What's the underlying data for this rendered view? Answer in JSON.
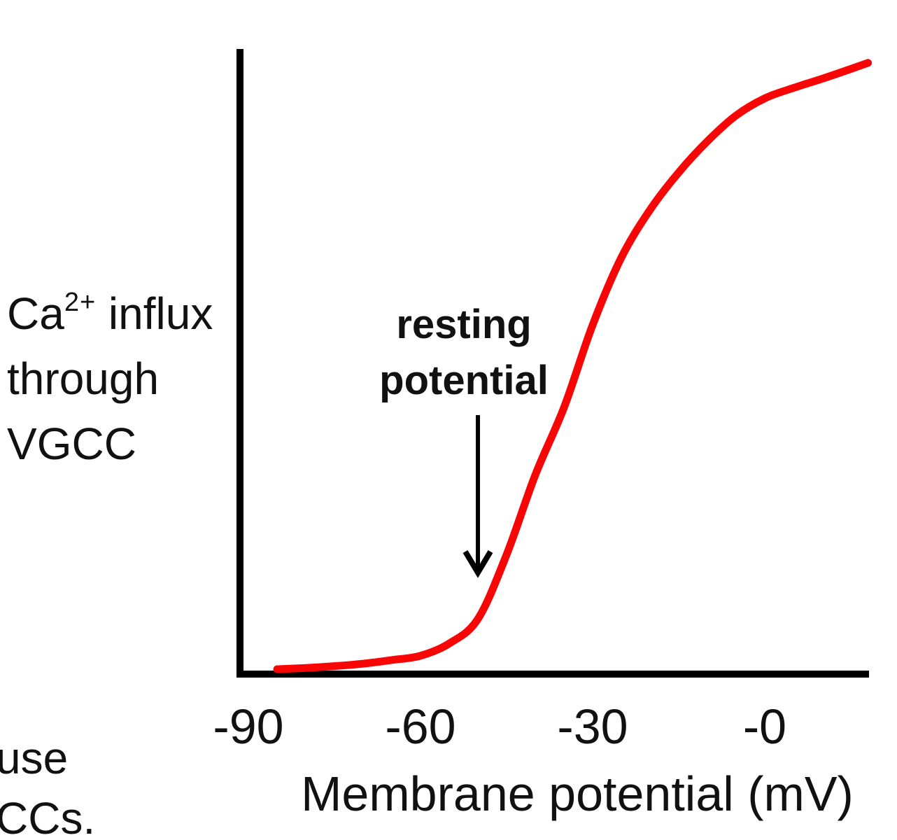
{
  "figure": {
    "background": "#ffffff",
    "text_color": "#111111",
    "axis_color": "#000000"
  },
  "y_axis_label": {
    "line1_main": "Ca",
    "line1_sup": "2+",
    "line1_rest": " influx",
    "line2": "through",
    "line3": "VGCC"
  },
  "annotation": {
    "line1": "resting",
    "line2": "potential"
  },
  "x_axis": {
    "label": "Membrane potential (mV)"
  },
  "corner_text": {
    "line1": "use",
    "line2": "CCs."
  },
  "chart_data": {
    "type": "line",
    "title": "",
    "xlabel": "Membrane potential (mV)",
    "ylabel": "Ca2+ influx through VGCC",
    "x_tick_values": [
      -90,
      -60,
      -30,
      0
    ],
    "x_tick_labels": [
      "-90",
      "-60",
      "-30",
      "-0"
    ],
    "xlim": [
      -91,
      18
    ],
    "ylim": [
      0,
      1.02
    ],
    "grid": false,
    "legend": "none",
    "annotation": {
      "text": "resting potential",
      "arrow_x_mV": -50
    },
    "series": [
      {
        "name": "Ca2+ influx through VGCC",
        "color": "#f80606",
        "x": [
          -85,
          -80,
          -75,
          -70,
          -65,
          -60,
          -55,
          -50,
          -45,
          -40,
          -35,
          -30,
          -25,
          -20,
          -15,
          -10,
          -5,
          0,
          5,
          10,
          15,
          18
        ],
        "y": [
          0.008,
          0.01,
          0.013,
          0.017,
          0.023,
          0.03,
          0.05,
          0.09,
          0.195,
          0.325,
          0.435,
          0.57,
          0.68,
          0.758,
          0.819,
          0.87,
          0.912,
          0.94,
          0.957,
          0.972,
          0.988,
          0.998
        ]
      }
    ]
  }
}
